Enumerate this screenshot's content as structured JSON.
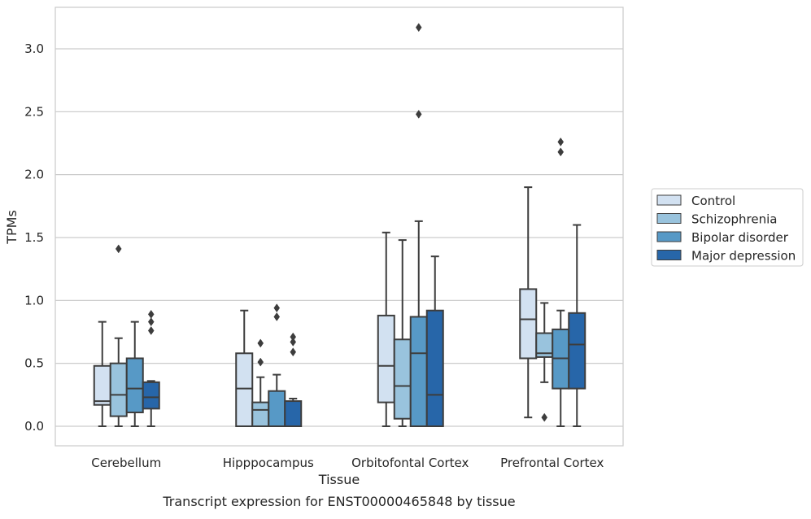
{
  "chart_data": {
    "type": "box",
    "title": "Transcript expression for ENST00000465848 by tissue",
    "xlabel": "Tissue",
    "ylabel": "TPMs",
    "ylim": [
      -0.15,
      3.35
    ],
    "yticks": [
      0.0,
      0.5,
      1.0,
      1.5,
      2.0,
      2.5,
      3.0
    ],
    "ytick_labels": [
      "0.0",
      "0.5",
      "1.0",
      "1.5",
      "2.0",
      "2.5",
      "3.0"
    ],
    "grid": "horizontal",
    "legend_position": "right",
    "categories": [
      "Cerebellum",
      "Hipppocampus",
      "Orbitofontal Cortex",
      "Prefrontal Cortex"
    ],
    "series": [
      {
        "name": "Control",
        "color": "#d2e1f1",
        "boxes": [
          {
            "whislo": 0.0,
            "q1": 0.17,
            "med": 0.2,
            "q3": 0.48,
            "whishi": 0.83,
            "fliers": []
          },
          {
            "whislo": 0.0,
            "q1": 0.0,
            "med": 0.3,
            "q3": 0.58,
            "whishi": 0.92,
            "fliers": []
          },
          {
            "whislo": 0.0,
            "q1": 0.19,
            "med": 0.48,
            "q3": 0.88,
            "whishi": 1.54,
            "fliers": []
          },
          {
            "whislo": 0.07,
            "q1": 0.54,
            "med": 0.85,
            "q3": 1.09,
            "whishi": 1.9,
            "fliers": []
          }
        ]
      },
      {
        "name": "Schizophrenia",
        "color": "#99c3dd",
        "boxes": [
          {
            "whislo": 0.0,
            "q1": 0.08,
            "med": 0.25,
            "q3": 0.5,
            "whishi": 0.7,
            "fliers": [
              1.41
            ]
          },
          {
            "whislo": 0.0,
            "q1": 0.0,
            "med": 0.13,
            "q3": 0.19,
            "whishi": 0.39,
            "fliers": [
              0.51,
              0.66
            ]
          },
          {
            "whislo": 0.0,
            "q1": 0.06,
            "med": 0.32,
            "q3": 0.69,
            "whishi": 1.48,
            "fliers": []
          },
          {
            "whislo": 0.35,
            "q1": 0.55,
            "med": 0.58,
            "q3": 0.74,
            "whishi": 0.98,
            "fliers": [
              0.07
            ]
          }
        ]
      },
      {
        "name": "Bipolar disorder",
        "color": "#5799c6",
        "boxes": [
          {
            "whislo": 0.0,
            "q1": 0.11,
            "med": 0.3,
            "q3": 0.54,
            "whishi": 0.83,
            "fliers": []
          },
          {
            "whislo": 0.0,
            "q1": 0.0,
            "med": 0.0,
            "q3": 0.28,
            "whishi": 0.41,
            "fliers": [
              0.87,
              0.94
            ]
          },
          {
            "whislo": 0.0,
            "q1": 0.0,
            "med": 0.58,
            "q3": 0.87,
            "whishi": 1.63,
            "fliers": [
              2.48,
              3.17
            ]
          },
          {
            "whislo": 0.0,
            "q1": 0.3,
            "med": 0.54,
            "q3": 0.77,
            "whishi": 0.92,
            "fliers": [
              2.18,
              2.26
            ]
          }
        ]
      },
      {
        "name": "Major depression",
        "color": "#2766a9",
        "boxes": [
          {
            "whislo": 0.0,
            "q1": 0.14,
            "med": 0.23,
            "q3": 0.35,
            "whishi": 0.36,
            "fliers": [
              0.76,
              0.83,
              0.89
            ]
          },
          {
            "whislo": 0.0,
            "q1": 0.0,
            "med": 0.0,
            "q3": 0.2,
            "whishi": 0.22,
            "fliers": [
              0.59,
              0.67,
              0.71
            ]
          },
          {
            "whislo": 0.0,
            "q1": 0.0,
            "med": 0.25,
            "q3": 0.92,
            "whishi": 1.35,
            "fliers": []
          },
          {
            "whislo": 0.0,
            "q1": 0.3,
            "med": 0.65,
            "q3": 0.9,
            "whishi": 1.6,
            "fliers": []
          }
        ]
      }
    ]
  }
}
